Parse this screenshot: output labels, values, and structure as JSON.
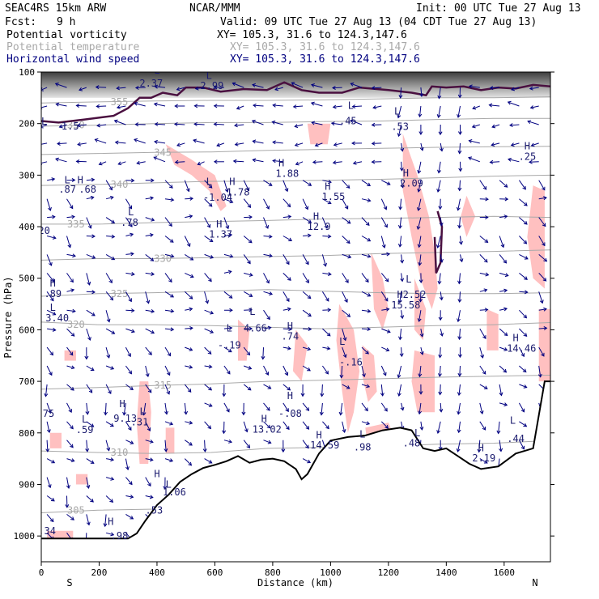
{
  "header": {
    "model": "SEAC4RS 15km ARW",
    "org": "NCAR/MMM",
    "init": "Init: 00 UTC Tue 27 Aug 13",
    "fcst_label": "Fcst:",
    "fcst_value": "9 h",
    "valid": "Valid: 09 UTC Tue 27 Aug 13 (04 CDT Tue 27 Aug 13)",
    "fields": [
      {
        "name": "Potential vorticity",
        "xy": "XY= 105.3, 31.6 to 124.3,147.6",
        "color": "#000000"
      },
      {
        "name": "Potential temperature",
        "xy": "XY= 105.3, 31.6 to 124.3,147.6",
        "color": "#a9a9a9"
      },
      {
        "name": "Horizontal wind speed",
        "xy": "XY= 105.3, 31.6 to 124.3,147.6",
        "color": "#000080"
      }
    ]
  },
  "chart_data": {
    "type": "vertical-cross-section",
    "ylabel": "Pressure (hPa)",
    "xlabel": "Distance (km)",
    "xlim": [
      0,
      1760
    ],
    "ylim": [
      1050,
      100
    ],
    "xticks": [
      0,
      200,
      400,
      600,
      800,
      1000,
      1200,
      1400,
      1600
    ],
    "yticks": [
      100,
      200,
      300,
      400,
      500,
      600,
      700,
      800,
      900,
      1000
    ],
    "left_end": "S",
    "right_end": "N",
    "terrain": [
      [
        0,
        1005
      ],
      [
        300,
        1005
      ],
      [
        330,
        995
      ],
      [
        360,
        970
      ],
      [
        400,
        940
      ],
      [
        440,
        920
      ],
      [
        480,
        895
      ],
      [
        520,
        880
      ],
      [
        560,
        868
      ],
      [
        600,
        862
      ],
      [
        640,
        855
      ],
      [
        680,
        845
      ],
      [
        720,
        858
      ],
      [
        760,
        852
      ],
      [
        800,
        850
      ],
      [
        840,
        855
      ],
      [
        880,
        870
      ],
      [
        900,
        890
      ],
      [
        920,
        880
      ],
      [
        960,
        840
      ],
      [
        1000,
        815
      ],
      [
        1060,
        808
      ],
      [
        1120,
        805
      ],
      [
        1180,
        795
      ],
      [
        1240,
        790
      ],
      [
        1280,
        795
      ],
      [
        1320,
        830
      ],
      [
        1360,
        835
      ],
      [
        1400,
        830
      ],
      [
        1440,
        845
      ],
      [
        1480,
        860
      ],
      [
        1520,
        870
      ],
      [
        1580,
        865
      ],
      [
        1640,
        840
      ],
      [
        1700,
        830
      ],
      [
        1740,
        700
      ],
      [
        1760,
        700
      ]
    ],
    "theta_contours": [
      {
        "label": "305",
        "y": [
          955,
          950,
          948,
          945,
          940,
          938,
          935,
          930,
          925,
          920
        ]
      },
      {
        "label": "310",
        "y": [
          835,
          838,
          840,
          838,
          830,
          828,
          826,
          822,
          820,
          815
        ]
      },
      {
        "label": "315",
        "y": [
          715,
          712,
          708,
          705,
          700,
          698,
          695,
          692,
          690,
          688
        ]
      },
      {
        "label": "320",
        "y": [
          585,
          590,
          590,
          592,
          595,
          598,
          595,
          592,
          590,
          586
        ]
      },
      {
        "label": "325",
        "y": [
          535,
          530,
          528,
          525,
          522,
          525,
          528,
          530,
          530,
          528
        ]
      },
      {
        "label": "330",
        "y": [
          465,
          462,
          462,
          460,
          458,
          456,
          452,
          450,
          448,
          445
        ]
      },
      {
        "label": "335",
        "y": [
          395,
          395,
          392,
          390,
          388,
          385,
          384,
          382,
          380,
          382
        ]
      },
      {
        "label": "340",
        "y": [
          320,
          318,
          315,
          312,
          312,
          310,
          308,
          305,
          302,
          300
        ]
      },
      {
        "label": "345",
        "y": [
          260,
          258,
          256,
          255,
          252,
          250,
          248,
          246,
          245,
          244
        ]
      },
      {
        "label": "350",
        "y": [
          205,
          203,
          200,
          198,
          198,
          196,
          195,
          192,
          190,
          190
        ]
      },
      {
        "label": "355",
        "y": [
          160,
          158,
          156,
          155,
          155,
          154,
          152,
          150,
          150,
          148
        ]
      }
    ],
    "speed_labels": [
      {
        "t": "H",
        "x": 40,
        "p": 510
      },
      {
        "t": ".89",
        "x": 40,
        "p": 530
      },
      {
        "t": "L",
        "x": 40,
        "p": 557
      },
      {
        "t": "3.40",
        "x": 55,
        "p": 577
      },
      {
        "t": "L",
        "x": 90,
        "p": 310
      },
      {
        "t": ".87",
        "x": 90,
        "p": 328
      },
      {
        "t": "H",
        "x": 135,
        "p": 310
      },
      {
        "t": ".68",
        "x": 160,
        "p": 328
      },
      {
        "t": "L",
        "x": 310,
        "p": 372
      },
      {
        "t": ".78",
        "x": 305,
        "p": 392
      },
      {
        "t": "H",
        "x": 615,
        "p": 395
      },
      {
        "t": "1.37",
        "x": 620,
        "p": 415
      },
      {
        "t": "L",
        "x": 580,
        "p": 313
      },
      {
        "t": "-1.04",
        "x": 610,
        "p": 343
      },
      {
        "t": "H",
        "x": 660,
        "p": 313
      },
      {
        "t": "1.78",
        "x": 680,
        "p": 333
      },
      {
        "t": "H",
        "x": 830,
        "p": 277
      },
      {
        "t": "1.88",
        "x": 850,
        "p": 297
      },
      {
        "t": "H",
        "x": 990,
        "p": 322
      },
      {
        "t": "1.55",
        "x": 1010,
        "p": 342
      },
      {
        "t": "H",
        "x": 950,
        "p": 380
      },
      {
        "t": "12.9",
        "x": 960,
        "p": 400
      },
      {
        "t": "H",
        "x": 860,
        "p": 593
      },
      {
        "t": ".74",
        "x": 860,
        "p": 613
      },
      {
        "t": "L",
        "x": 650,
        "p": 597
      },
      {
        "t": "-.19",
        "x": 650,
        "p": 630
      },
      {
        "t": "L",
        "x": 730,
        "p": 565
      },
      {
        "t": "4.66",
        "x": 740,
        "p": 597
      },
      {
        "t": "L",
        "x": 1040,
        "p": 623
      },
      {
        "t": "-.16",
        "x": 1070,
        "p": 663
      },
      {
        "t": "H",
        "x": 770,
        "p": 773
      },
      {
        "t": "13.02",
        "x": 780,
        "p": 793
      },
      {
        "t": "H",
        "x": 860,
        "p": 728
      },
      {
        "t": "-.08",
        "x": 860,
        "p": 763
      },
      {
        "t": "H",
        "x": 960,
        "p": 804
      },
      {
        "t": "14.59",
        "x": 980,
        "p": 824
      },
      {
        "t": "L",
        "x": 1110,
        "p": 803
      },
      {
        "t": ".98",
        "x": 1110,
        "p": 828
      },
      {
        "t": "L",
        "x": 1300,
        "p": 800
      },
      {
        "t": ".48",
        "x": 1280,
        "p": 820
      },
      {
        "t": "H",
        "x": 1520,
        "p": 829
      },
      {
        "t": "2.19",
        "x": 1530,
        "p": 849
      },
      {
        "t": "H",
        "x": 1240,
        "p": 532
      },
      {
        "t": "15.58",
        "x": 1260,
        "p": 552
      },
      {
        "t": "L",
        "x": 1270,
        "p": 502
      },
      {
        "t": "2.52",
        "x": 1290,
        "p": 532
      },
      {
        "t": "H",
        "x": 1640,
        "p": 616
      },
      {
        "t": "14.46",
        "x": 1660,
        "p": 636
      },
      {
        "t": "L",
        "x": 1630,
        "p": 776
      },
      {
        "t": ".44",
        "x": 1640,
        "p": 811
      },
      {
        "t": "H",
        "x": 1260,
        "p": 296
      },
      {
        "t": "2.09",
        "x": 1280,
        "p": 316
      },
      {
        "t": "L",
        "x": 1230,
        "p": 176
      },
      {
        "t": ".53",
        "x": 1240,
        "p": 206
      },
      {
        "t": "L",
        "x": 1070,
        "p": 165
      },
      {
        "t": ".45",
        "x": 1060,
        "p": 195
      },
      {
        "t": "L",
        "x": 580,
        "p": 107
      },
      {
        "t": "2.99",
        "x": 590,
        "p": 127
      },
      {
        "t": "L",
        "x": 400,
        "p": 97
      },
      {
        "t": "2.37",
        "x": 380,
        "p": 122
      },
      {
        "t": "H",
        "x": 1680,
        "p": 244
      },
      {
        "t": ".25",
        "x": 1680,
        "p": 264
      },
      {
        "t": "L",
        "x": 10,
        "p": 196
      },
      {
        "t": "1.5",
        "x": 100,
        "p": 205
      },
      {
        "t": "H",
        "x": 400,
        "p": 880
      },
      {
        "t": "1.06",
        "x": 460,
        "p": 915
      },
      {
        "t": "L",
        "x": 440,
        "p": 900
      },
      {
        "t": ".53",
        "x": 390,
        "p": 950
      },
      {
        "t": "H",
        "x": 240,
        "p": 972
      },
      {
        "t": ".98",
        "x": 270,
        "p": 1000
      },
      {
        "t": "H",
        "x": 280,
        "p": 744
      },
      {
        "t": "9.13",
        "x": 290,
        "p": 772
      },
      {
        "t": "L",
        "x": 350,
        "p": 759
      },
      {
        "t": ".31",
        "x": 340,
        "p": 779
      },
      {
        "t": "L",
        "x": 150,
        "p": 774
      },
      {
        "t": ".59",
        "x": 150,
        "p": 794
      },
      {
        "t": ".34",
        "x": 20,
        "p": 990
      },
      {
        "t": ".75",
        "x": 15,
        "p": 763
      },
      {
        "t": "20",
        "x": 10,
        "p": 408
      }
    ]
  }
}
